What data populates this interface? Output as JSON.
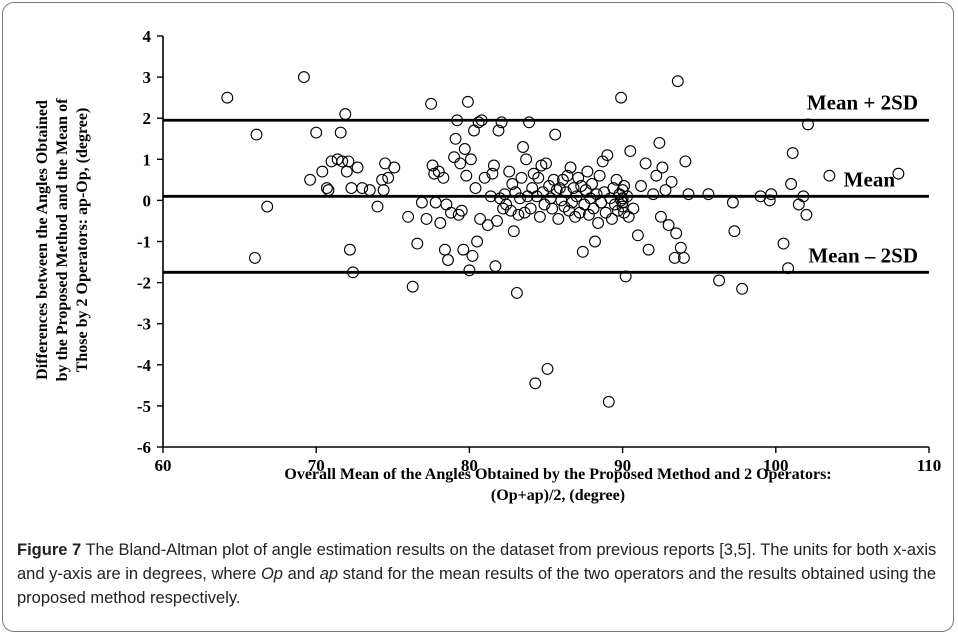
{
  "chart_data": {
    "type": "scatter",
    "xlabel_line1": "Overall Mean of the Angles Obtained by the Proposed Method and 2 Operators:",
    "xlabel_line2": "(Op+ap)/2, (degree)",
    "ylabel_line1": "Differences between the Angles Obtained",
    "ylabel_line2": "by the Proposed Method and the Mean of",
    "ylabel_line3": "Those by 2 Operators: ap-Op, (degree)",
    "xlim": [
      60,
      110
    ],
    "ylim": [
      -6,
      4
    ],
    "xticks": [
      "60",
      "70",
      "80",
      "90",
      "100",
      "110"
    ],
    "yticks": [
      "4",
      "3",
      "2",
      "1",
      "0",
      "-1",
      "-2",
      "-3",
      "-4",
      "-5",
      "-6"
    ],
    "reference_lines": [
      {
        "label": "Mean + 2SD",
        "y": 1.95
      },
      {
        "label": "Mean",
        "y": 0.1
      },
      {
        "label": "Mean – 2SD",
        "y": -1.75
      }
    ],
    "points": [
      [
        64.2,
        2.5
      ],
      [
        66.1,
        1.6
      ],
      [
        66.0,
        -1.4
      ],
      [
        66.8,
        -0.15
      ],
      [
        69.2,
        3.0
      ],
      [
        69.6,
        0.5
      ],
      [
        70.0,
        1.65
      ],
      [
        70.4,
        0.7
      ],
      [
        70.7,
        0.3
      ],
      [
        70.8,
        0.25
      ],
      [
        71.0,
        0.95
      ],
      [
        71.4,
        1.0
      ],
      [
        71.6,
        1.65
      ],
      [
        71.7,
        0.95
      ],
      [
        71.9,
        2.1
      ],
      [
        72.0,
        0.7
      ],
      [
        72.1,
        0.95
      ],
      [
        72.2,
        -1.2
      ],
      [
        72.3,
        0.3
      ],
      [
        72.4,
        -1.75
      ],
      [
        72.7,
        0.8
      ],
      [
        73.0,
        0.3
      ],
      [
        73.5,
        0.25
      ],
      [
        74.0,
        -0.15
      ],
      [
        74.3,
        0.5
      ],
      [
        74.4,
        0.25
      ],
      [
        74.5,
        0.9
      ],
      [
        74.7,
        0.55
      ],
      [
        75.1,
        0.8
      ],
      [
        76.0,
        -0.4
      ],
      [
        76.3,
        -2.1
      ],
      [
        76.6,
        -1.05
      ],
      [
        76.9,
        -0.05
      ],
      [
        77.2,
        -0.45
      ],
      [
        77.5,
        2.35
      ],
      [
        77.6,
        0.85
      ],
      [
        77.7,
        0.65
      ],
      [
        77.8,
        -0.05
      ],
      [
        78.0,
        0.7
      ],
      [
        78.1,
        -0.55
      ],
      [
        78.3,
        0.55
      ],
      [
        78.4,
        -1.2
      ],
      [
        78.5,
        -0.1
      ],
      [
        78.6,
        -1.45
      ],
      [
        78.8,
        -0.3
      ],
      [
        79.0,
        1.05
      ],
      [
        79.1,
        1.5
      ],
      [
        79.2,
        1.95
      ],
      [
        79.3,
        -0.35
      ],
      [
        79.4,
        0.9
      ],
      [
        79.5,
        -0.25
      ],
      [
        79.6,
        -1.2
      ],
      [
        79.7,
        1.25
      ],
      [
        79.8,
        0.6
      ],
      [
        79.9,
        2.4
      ],
      [
        80.0,
        -1.7
      ],
      [
        80.1,
        1.0
      ],
      [
        80.2,
        -1.35
      ],
      [
        80.3,
        1.7
      ],
      [
        80.4,
        0.3
      ],
      [
        80.5,
        -1.0
      ],
      [
        80.6,
        1.9
      ],
      [
        80.7,
        -0.45
      ],
      [
        80.8,
        1.95
      ],
      [
        81.0,
        0.55
      ],
      [
        81.2,
        -0.6
      ],
      [
        81.4,
        0.1
      ],
      [
        81.5,
        0.65
      ],
      [
        81.6,
        0.85
      ],
      [
        81.7,
        -1.6
      ],
      [
        81.8,
        -0.5
      ],
      [
        81.9,
        1.7
      ],
      [
        82.0,
        0.05
      ],
      [
        82.1,
        1.9
      ],
      [
        82.2,
        -0.2
      ],
      [
        82.3,
        0.15
      ],
      [
        82.4,
        -0.1
      ],
      [
        82.6,
        0.7
      ],
      [
        82.7,
        -0.25
      ],
      [
        82.8,
        0.4
      ],
      [
        82.9,
        -0.75
      ],
      [
        83.0,
        0.2
      ],
      [
        83.1,
        -2.25
      ],
      [
        83.2,
        -0.35
      ],
      [
        83.3,
        0.05
      ],
      [
        83.4,
        0.55
      ],
      [
        83.5,
        1.3
      ],
      [
        83.6,
        -0.3
      ],
      [
        83.7,
        1.0
      ],
      [
        83.8,
        0.1
      ],
      [
        83.9,
        1.9
      ],
      [
        84.0,
        -0.2
      ],
      [
        84.1,
        0.3
      ],
      [
        84.2,
        0.65
      ],
      [
        84.3,
        -4.45
      ],
      [
        84.4,
        0.1
      ],
      [
        84.5,
        0.55
      ],
      [
        84.6,
        -0.4
      ],
      [
        84.7,
        0.85
      ],
      [
        84.8,
        0.2
      ],
      [
        84.9,
        -0.1
      ],
      [
        85.0,
        0.9
      ],
      [
        85.1,
        -4.1
      ],
      [
        85.2,
        0.35
      ],
      [
        85.3,
        0.05
      ],
      [
        85.4,
        -0.2
      ],
      [
        85.5,
        0.5
      ],
      [
        85.6,
        1.6
      ],
      [
        85.7,
        0.25
      ],
      [
        85.8,
        -0.45
      ],
      [
        85.9,
        0.3
      ],
      [
        86.0,
        0.0
      ],
      [
        86.1,
        0.5
      ],
      [
        86.2,
        -0.15
      ],
      [
        86.3,
        0.2
      ],
      [
        86.4,
        0.6
      ],
      [
        86.5,
        -0.25
      ],
      [
        86.6,
        0.8
      ],
      [
        86.7,
        -0.05
      ],
      [
        86.8,
        0.3
      ],
      [
        86.9,
        -0.4
      ],
      [
        87.0,
        0.1
      ],
      [
        87.1,
        0.55
      ],
      [
        87.2,
        -0.3
      ],
      [
        87.3,
        0.35
      ],
      [
        87.4,
        -1.25
      ],
      [
        87.5,
        -0.1
      ],
      [
        87.6,
        0.25
      ],
      [
        87.7,
        0.7
      ],
      [
        87.8,
        -0.35
      ],
      [
        87.9,
        0.05
      ],
      [
        88.0,
        0.4
      ],
      [
        88.1,
        -0.2
      ],
      [
        88.2,
        -1.0
      ],
      [
        88.3,
        0.15
      ],
      [
        88.4,
        -0.55
      ],
      [
        88.5,
        0.6
      ],
      [
        88.6,
        -0.05
      ],
      [
        88.7,
        0.95
      ],
      [
        88.8,
        0.2
      ],
      [
        88.9,
        -0.3
      ],
      [
        89.0,
        1.1
      ],
      [
        89.1,
        -4.9
      ],
      [
        89.2,
        0.05
      ],
      [
        89.3,
        -0.45
      ],
      [
        89.4,
        0.3
      ],
      [
        89.5,
        -0.1
      ],
      [
        89.6,
        0.5
      ],
      [
        89.7,
        -0.25
      ],
      [
        89.8,
        0.15
      ],
      [
        89.9,
        0.0
      ],
      [
        90.0,
        0.25
      ],
      [
        90.0,
        -0.15
      ],
      [
        90.0,
        0.05
      ],
      [
        90.0,
        -0.05
      ],
      [
        90.1,
        0.35
      ],
      [
        90.1,
        -0.3
      ],
      [
        90.2,
        -1.85
      ],
      [
        90.3,
        0.1
      ],
      [
        90.4,
        -0.4
      ],
      [
        89.9,
        2.5
      ],
      [
        90.5,
        1.2
      ],
      [
        90.7,
        -0.2
      ],
      [
        91.0,
        -0.85
      ],
      [
        91.2,
        0.35
      ],
      [
        91.5,
        0.9
      ],
      [
        91.7,
        -1.2
      ],
      [
        92.0,
        0.15
      ],
      [
        92.2,
        0.6
      ],
      [
        92.4,
        1.4
      ],
      [
        92.5,
        -0.4
      ],
      [
        92.6,
        0.8
      ],
      [
        92.8,
        0.25
      ],
      [
        93.0,
        -0.6
      ],
      [
        93.2,
        0.45
      ],
      [
        93.4,
        -1.4
      ],
      [
        93.5,
        -0.8
      ],
      [
        93.6,
        2.9
      ],
      [
        93.8,
        -1.15
      ],
      [
        94.0,
        -1.4
      ],
      [
        94.1,
        0.95
      ],
      [
        94.3,
        0.15
      ],
      [
        95.6,
        0.15
      ],
      [
        96.3,
        -1.95
      ],
      [
        97.2,
        -0.05
      ],
      [
        97.3,
        -0.75
      ],
      [
        97.8,
        -2.15
      ],
      [
        99.0,
        0.1
      ],
      [
        99.6,
        0.0
      ],
      [
        99.7,
        0.15
      ],
      [
        100.5,
        -1.05
      ],
      [
        100.8,
        -1.65
      ],
      [
        101.0,
        0.4
      ],
      [
        101.1,
        1.15
      ],
      [
        101.5,
        -0.1
      ],
      [
        101.8,
        0.1
      ],
      [
        102.0,
        -0.35
      ],
      [
        102.1,
        1.85
      ],
      [
        103.5,
        0.6
      ],
      [
        108.0,
        0.65
      ]
    ]
  },
  "caption": {
    "label": "Figure 7",
    "text_a": " The Bland-Altman plot of angle estimation results on the dataset from previous reports [3,5]. The units for both x-axis and y-axis are in degrees, where ",
    "op": "Op",
    "text_b": " and ",
    "ap": "ap",
    "text_c": " stand for the mean results of the two operators and the results obtained using the proposed method respectively."
  }
}
